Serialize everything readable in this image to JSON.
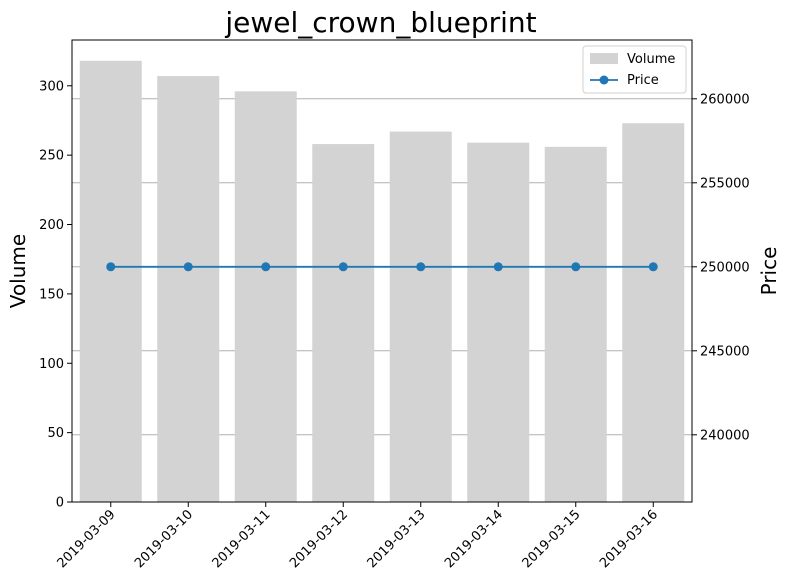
{
  "chart_data": {
    "type": "bar+line",
    "title": "jewel_crown_blueprint",
    "categories": [
      "2019-03-09",
      "2019-03-10",
      "2019-03-11",
      "2019-03-12",
      "2019-03-13",
      "2019-03-14",
      "2019-03-15",
      "2019-03-16"
    ],
    "series": [
      {
        "name": "Volume",
        "type": "bar",
        "axis": "left",
        "color": "#d3d3d3",
        "values": [
          318,
          307,
          296,
          258,
          267,
          259,
          256,
          273
        ]
      },
      {
        "name": "Price",
        "type": "line",
        "axis": "right",
        "color": "#1f77b4",
        "values": [
          250000,
          250000,
          250000,
          250000,
          250000,
          250000,
          250000,
          250000
        ]
      }
    ],
    "ylabel": "Volume",
    "y2label": "Price",
    "ylim": [
      0,
      333
    ],
    "y2lim": [
      236000,
      263500
    ],
    "yticks": [
      0,
      50,
      100,
      150,
      200,
      250,
      300
    ],
    "y2ticks": [
      240000,
      245000,
      250000,
      255000,
      260000
    ],
    "grid": "right-axis horizontal",
    "legend_position": "top-right"
  }
}
